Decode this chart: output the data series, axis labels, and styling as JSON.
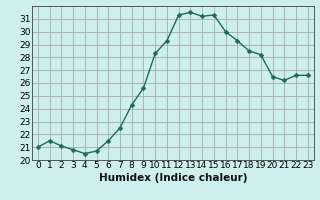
{
  "x": [
    0,
    1,
    2,
    3,
    4,
    5,
    6,
    7,
    8,
    9,
    10,
    11,
    12,
    13,
    14,
    15,
    16,
    17,
    18,
    19,
    20,
    21,
    22,
    23
  ],
  "y": [
    21.0,
    21.5,
    21.1,
    20.8,
    20.5,
    20.7,
    21.5,
    22.5,
    24.3,
    25.6,
    28.3,
    29.3,
    31.3,
    31.5,
    31.2,
    31.3,
    30.0,
    29.3,
    28.5,
    28.2,
    26.5,
    26.2,
    26.6,
    26.6
  ],
  "line_color": "#1a6b5a",
  "marker": "D",
  "marker_size": 2.5,
  "bg_color": "#cdf0ee",
  "grid_color_major": "#aaaaaa",
  "grid_color_minor": "#d8a8a8",
  "xlabel": "Humidex (Indice chaleur)",
  "ylabel": "",
  "xlim": [
    -0.5,
    23.5
  ],
  "ylim": [
    20,
    32
  ],
  "yticks": [
    20,
    21,
    22,
    23,
    24,
    25,
    26,
    27,
    28,
    29,
    30,
    31
  ],
  "xticks": [
    0,
    1,
    2,
    3,
    4,
    5,
    6,
    7,
    8,
    9,
    10,
    11,
    12,
    13,
    14,
    15,
    16,
    17,
    18,
    19,
    20,
    21,
    22,
    23
  ],
  "font_size": 6.5,
  "xlabel_font_size": 7.5
}
